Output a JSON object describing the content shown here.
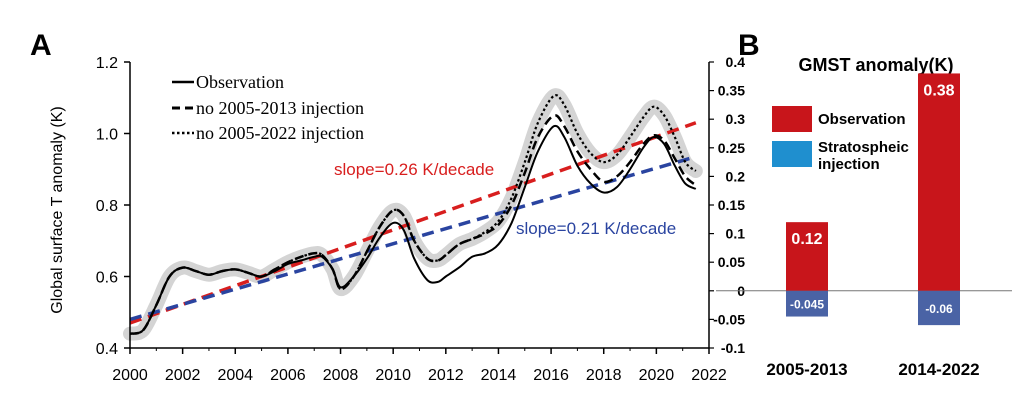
{
  "chart_data": [
    {
      "panel_label": "A",
      "type": "line",
      "title": "",
      "xlabel": "",
      "ylabel": "Global surface T anomaly (K)",
      "xlim": [
        2000,
        2022
      ],
      "ylim": [
        0.4,
        1.2
      ],
      "x_ticks": [
        "2000",
        "2002",
        "2004",
        "2006",
        "2008",
        "2010",
        "2012",
        "2014",
        "2016",
        "2018",
        "2020",
        "2022"
      ],
      "y_ticks": [
        "0.4",
        "0.6",
        "0.8",
        "1.0",
        "1.2"
      ],
      "legend_position": "top-left",
      "series": [
        {
          "name": "Observation",
          "style": "solid",
          "points": [
            [
              2000,
              0.44
            ],
            [
              2000.5,
              0.45
            ],
            [
              2001,
              0.52
            ],
            [
              2001.5,
              0.6
            ],
            [
              2002,
              0.625
            ],
            [
              2002.5,
              0.615
            ],
            [
              2003,
              0.605
            ],
            [
              2003.5,
              0.615
            ],
            [
              2004,
              0.62
            ],
            [
              2004.5,
              0.61
            ],
            [
              2005,
              0.6
            ],
            [
              2005.5,
              0.615
            ],
            [
              2006,
              0.635
            ],
            [
              2006.5,
              0.645
            ],
            [
              2007,
              0.655
            ],
            [
              2007.3,
              0.655
            ],
            [
              2007.7,
              0.62
            ],
            [
              2008,
              0.57
            ],
            [
              2008.5,
              0.6
            ],
            [
              2009,
              0.65
            ],
            [
              2009.5,
              0.71
            ],
            [
              2010,
              0.75
            ],
            [
              2010.4,
              0.73
            ],
            [
              2010.8,
              0.65
            ],
            [
              2011.3,
              0.59
            ],
            [
              2011.7,
              0.585
            ],
            [
              2012,
              0.6
            ],
            [
              2012.5,
              0.625
            ],
            [
              2013,
              0.655
            ],
            [
              2013.5,
              0.665
            ],
            [
              2014,
              0.69
            ],
            [
              2014.5,
              0.75
            ],
            [
              2015,
              0.85
            ],
            [
              2015.5,
              0.95
            ],
            [
              2016.1,
              1.02
            ],
            [
              2016.5,
              0.99
            ],
            [
              2017,
              0.91
            ],
            [
              2017.5,
              0.86
            ],
            [
              2018,
              0.835
            ],
            [
              2018.5,
              0.85
            ],
            [
              2019,
              0.9
            ],
            [
              2019.5,
              0.96
            ],
            [
              2019.9,
              0.99
            ],
            [
              2020.3,
              0.97
            ],
            [
              2020.7,
              0.91
            ],
            [
              2021.1,
              0.86
            ],
            [
              2021.5,
              0.845
            ]
          ]
        },
        {
          "name": "no 2005-2013 injection",
          "style": "dashed",
          "points": [
            [
              2000,
              0.44
            ],
            [
              2000.5,
              0.45
            ],
            [
              2001,
              0.52
            ],
            [
              2001.5,
              0.6
            ],
            [
              2002,
              0.625
            ],
            [
              2002.5,
              0.615
            ],
            [
              2003,
              0.605
            ],
            [
              2003.5,
              0.615
            ],
            [
              2004,
              0.62
            ],
            [
              2004.5,
              0.61
            ],
            [
              2005,
              0.6
            ],
            [
              2005.5,
              0.62
            ],
            [
              2006,
              0.64
            ],
            [
              2006.5,
              0.655
            ],
            [
              2007,
              0.665
            ],
            [
              2007.3,
              0.66
            ],
            [
              2007.7,
              0.62
            ],
            [
              2008,
              0.565
            ],
            [
              2008.5,
              0.6
            ],
            [
              2009,
              0.67
            ],
            [
              2009.5,
              0.74
            ],
            [
              2010,
              0.785
            ],
            [
              2010.4,
              0.77
            ],
            [
              2010.8,
              0.7
            ],
            [
              2011.3,
              0.65
            ],
            [
              2011.7,
              0.645
            ],
            [
              2012,
              0.66
            ],
            [
              2012.5,
              0.69
            ],
            [
              2013,
              0.705
            ],
            [
              2013.5,
              0.72
            ],
            [
              2014,
              0.745
            ],
            [
              2014.5,
              0.8
            ],
            [
              2015,
              0.89
            ],
            [
              2015.5,
              0.99
            ],
            [
              2016.1,
              1.05
            ],
            [
              2016.5,
              1.02
            ],
            [
              2017,
              0.95
            ],
            [
              2017.5,
              0.9
            ],
            [
              2018,
              0.865
            ],
            [
              2018.5,
              0.88
            ],
            [
              2019,
              0.92
            ],
            [
              2019.5,
              0.97
            ],
            [
              2019.9,
              0.995
            ],
            [
              2020.3,
              0.98
            ],
            [
              2020.7,
              0.93
            ],
            [
              2021.1,
              0.88
            ],
            [
              2021.5,
              0.855
            ]
          ]
        },
        {
          "name": "no 2005-2022 injection",
          "style": "dotted",
          "points": [
            [
              2000,
              0.44
            ],
            [
              2000.5,
              0.45
            ],
            [
              2001,
              0.52
            ],
            [
              2001.5,
              0.6
            ],
            [
              2002,
              0.625
            ],
            [
              2002.5,
              0.615
            ],
            [
              2003,
              0.605
            ],
            [
              2003.5,
              0.615
            ],
            [
              2004,
              0.62
            ],
            [
              2004.5,
              0.61
            ],
            [
              2005,
              0.6
            ],
            [
              2005.5,
              0.62
            ],
            [
              2006,
              0.64
            ],
            [
              2006.5,
              0.655
            ],
            [
              2007,
              0.665
            ],
            [
              2007.3,
              0.66
            ],
            [
              2007.7,
              0.62
            ],
            [
              2008,
              0.565
            ],
            [
              2008.5,
              0.6
            ],
            [
              2009,
              0.67
            ],
            [
              2009.5,
              0.74
            ],
            [
              2010,
              0.785
            ],
            [
              2010.4,
              0.77
            ],
            [
              2010.8,
              0.7
            ],
            [
              2011.3,
              0.65
            ],
            [
              2011.7,
              0.645
            ],
            [
              2012,
              0.66
            ],
            [
              2012.5,
              0.69
            ],
            [
              2013,
              0.705
            ],
            [
              2013.5,
              0.725
            ],
            [
              2014,
              0.755
            ],
            [
              2014.5,
              0.82
            ],
            [
              2015,
              0.92
            ],
            [
              2015.5,
              1.03
            ],
            [
              2016.1,
              1.105
            ],
            [
              2016.5,
              1.08
            ],
            [
              2017,
              1.0
            ],
            [
              2017.5,
              0.945
            ],
            [
              2018,
              0.92
            ],
            [
              2018.5,
              0.94
            ],
            [
              2019,
              0.99
            ],
            [
              2019.5,
              1.045
            ],
            [
              2019.9,
              1.075
            ],
            [
              2020.3,
              1.05
            ],
            [
              2020.7,
              0.99
            ],
            [
              2021.1,
              0.92
            ],
            [
              2021.5,
              0.895
            ]
          ]
        }
      ],
      "trend_lines": [
        {
          "label": "slope=0.26 K/decade",
          "color": "#d81e1e",
          "from": [
            2000,
            0.47
          ],
          "to": [
            2021.5,
            1.03
          ]
        },
        {
          "label": "slope=0.21 K/decade",
          "color": "#2a44a0",
          "from": [
            2000,
            0.48
          ],
          "to": [
            2021.5,
            0.935
          ]
        }
      ],
      "right_axis": {
        "ylim": [
          -0.1,
          0.4
        ],
        "ticks": [
          "0.4",
          "0.35",
          "0.3",
          "0.25",
          "0.2",
          "0.15",
          "0.1",
          "0.05",
          "0",
          "-0.05",
          "-0.1"
        ]
      }
    },
    {
      "panel_label": "B",
      "type": "bar",
      "title": "GMST anomaly(K)",
      "categories": [
        "2005-2013",
        "2014-2022"
      ],
      "series": [
        {
          "name": "Observation",
          "color": "#c8151b",
          "values": [
            0.12,
            0.38
          ]
        },
        {
          "name": "Stratospheic injection",
          "color": "#4a63a5",
          "values": [
            -0.045,
            -0.06
          ]
        }
      ],
      "value_labels": [
        [
          "0.12",
          "0.38"
        ],
        [
          "-0.045",
          "-0.06"
        ]
      ],
      "ylim": [
        -0.1,
        0.4
      ]
    }
  ],
  "legend_a": [
    "Observation",
    "no 2005-2013 injection",
    "no 2005-2022 injection"
  ],
  "legend_b_lines": [
    [
      "Observation"
    ],
    [
      "Stratospheic",
      "injection"
    ]
  ],
  "colors": {
    "red": "#d81e1e",
    "blue": "#2a44a0",
    "bar_red": "#c8151b",
    "bar_blue": "#4a63a5",
    "legend_blue": "#1f8fcf",
    "band": "#d4d4d4"
  }
}
